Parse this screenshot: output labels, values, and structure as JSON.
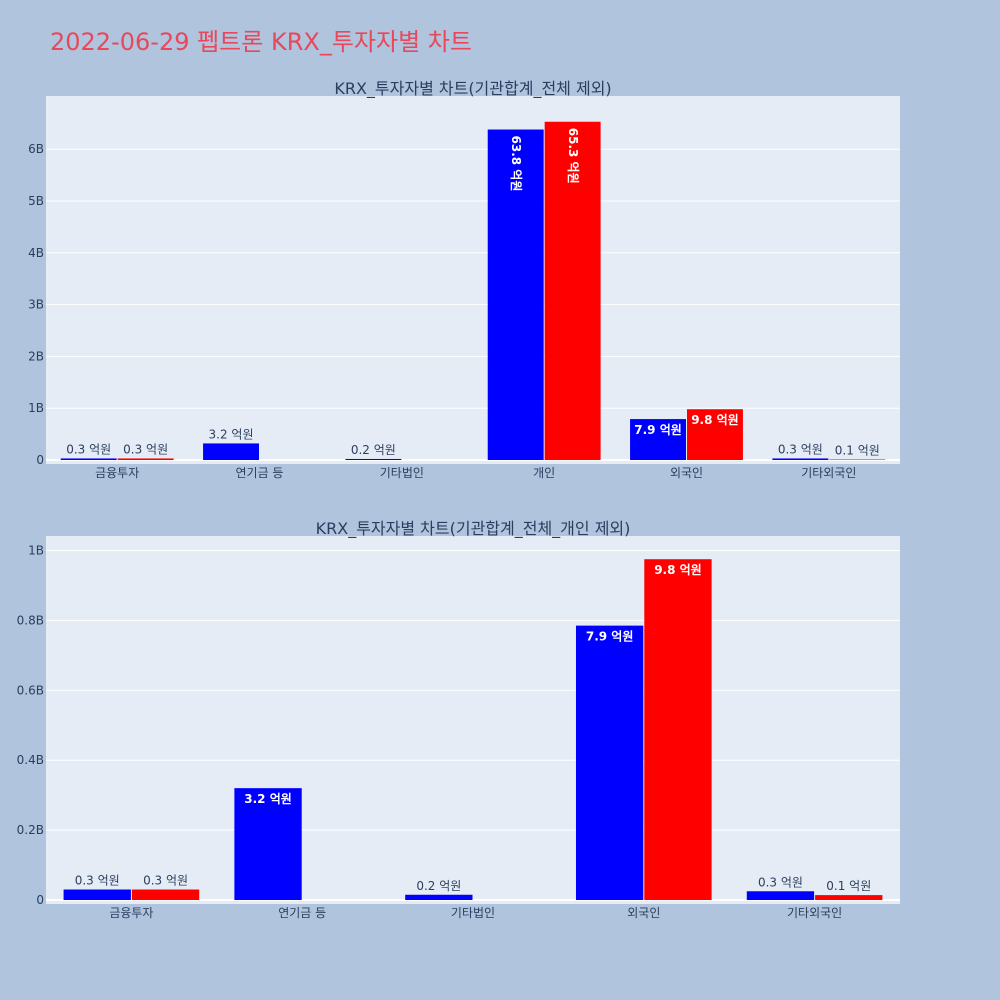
{
  "title": "2022-06-29 펩트론 KRX_투자자별 차트",
  "colors": {
    "buy": "#0000ff",
    "sell": "#ff0000",
    "plot_bg": "#e5ecf6",
    "page_bg": "#b0c4de",
    "title": "#e8485a"
  },
  "chart_data": [
    {
      "type": "bar",
      "title": "KRX_투자자별 차트(기관합계_전체 제외)",
      "categories": [
        "금융투자",
        "연기금 등",
        "기타법인",
        "개인",
        "외국인",
        "기타외국인"
      ],
      "series": [
        {
          "values": [
            30000000,
            320000000,
            20000000,
            6380000000,
            790000000,
            30000000
          ],
          "labels": [
            "0.3 억원",
            "3.2 억원",
            "0.2 억원",
            "63.8 억원",
            "7.9 억원",
            "0.3 억원"
          ]
        },
        {
          "values": [
            30000000,
            null,
            null,
            6530000000,
            980000000,
            10000000
          ],
          "labels": [
            "0.3 억원",
            "",
            "",
            "65.3 억원",
            "9.8 억원",
            "0.1 억원"
          ]
        }
      ],
      "ylim": [
        0,
        6950000000
      ],
      "yticks": [
        0,
        1000000000,
        2000000000,
        3000000000,
        4000000000,
        5000000000,
        6000000000
      ],
      "ytick_labels": [
        "0",
        "1B",
        "2B",
        "3B",
        "4B",
        "5B",
        "6B"
      ],
      "grid": true
    },
    {
      "type": "bar",
      "title": "KRX_투자자별 차트(기관합계_전체_개인 제외)",
      "categories": [
        "금융투자",
        "연기금 등",
        "기타법인",
        "외국인",
        "기타외국인"
      ],
      "series": [
        {
          "values": [
            30000000,
            320000000,
            15000000,
            785000000,
            25000000
          ],
          "labels": [
            "0.3 억원",
            "3.2 억원",
            "0.2 억원",
            "7.9 억원",
            "0.3 억원"
          ]
        },
        {
          "values": [
            30000000,
            null,
            null,
            975000000,
            14000000
          ],
          "labels": [
            "0.3 억원",
            "",
            "",
            "9.8 억원",
            "0.1 억원"
          ]
        }
      ],
      "ylim": [
        0,
        1030000000
      ],
      "yticks": [
        0,
        200000000,
        400000000,
        600000000,
        800000000,
        1000000000
      ],
      "ytick_labels": [
        "0",
        "0.2B",
        "0.4B",
        "0.6B",
        "0.8B",
        "1B"
      ],
      "grid": true
    }
  ]
}
